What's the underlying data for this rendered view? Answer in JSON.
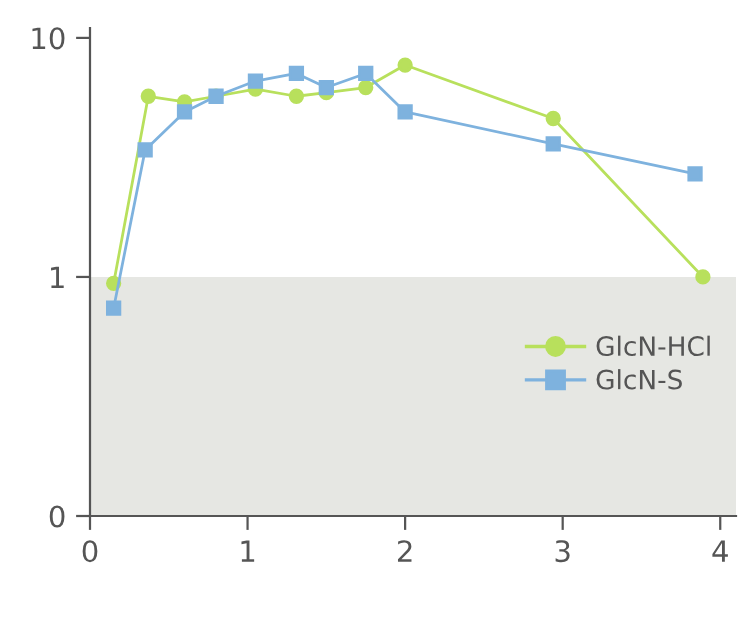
{
  "chart_data": {
    "type": "line",
    "series": [
      {
        "name": "GlcN-HCl",
        "color": "#b8e05c",
        "marker": "circle",
        "x": [
          0.15,
          0.37,
          0.6,
          0.8,
          1.05,
          1.31,
          1.5,
          1.75,
          2.0,
          2.94,
          3.89
        ],
        "values": [
          0.94,
          5.7,
          5.4,
          5.7,
          6.1,
          5.7,
          5.9,
          6.2,
          7.7,
          4.6,
          1.0
        ]
      },
      {
        "name": "GlcN-S",
        "color": "#7eb2de",
        "marker": "square",
        "x": [
          0.15,
          0.35,
          0.6,
          0.8,
          1.05,
          1.31,
          1.5,
          1.75,
          2.0,
          2.94,
          3.84
        ],
        "values": [
          0.74,
          3.4,
          4.9,
          5.7,
          6.6,
          7.1,
          6.2,
          7.1,
          4.9,
          3.6,
          2.7
        ]
      }
    ],
    "xlim": [
      0,
      4.1
    ],
    "xticks": [
      0,
      1,
      2,
      3,
      4
    ],
    "ylim": [
      0.1,
      11
    ],
    "yticks": [
      {
        "value": 0.1,
        "label": "0"
      },
      1,
      10
    ],
    "log": true,
    "bands": [
      {
        "axis": "y",
        "from": 0.1,
        "to": 1,
        "color": "#e6e7e3"
      }
    ],
    "legend": "lower right",
    "grid": false
  }
}
